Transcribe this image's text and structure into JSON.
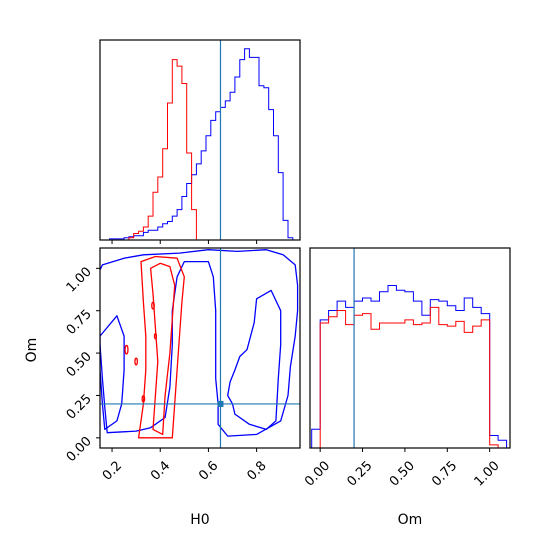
{
  "chart_data": {
    "type": "corner",
    "params": [
      "H0",
      "Om"
    ],
    "truth": {
      "H0": 0.65,
      "Om": 0.2
    },
    "colors": {
      "blue": "#0000ff",
      "red": "#ff0000",
      "truth": "#1f77b4"
    },
    "axes": {
      "H0": {
        "label": "H0",
        "range": [
          0.15,
          0.98
        ],
        "ticks": [
          0.2,
          0.4,
          0.6,
          0.8
        ],
        "tick_labels": [
          "0.2",
          "0.4",
          "0.6",
          "0.8"
        ]
      },
      "Om": {
        "label": "Om",
        "range": [
          -0.06,
          1.12
        ],
        "ticks": [
          0.0,
          0.25,
          0.5,
          0.75,
          1.0
        ],
        "tick_labels": [
          "0.00",
          "0.25",
          "0.50",
          "0.75",
          "1.00"
        ]
      }
    },
    "hist_H0": {
      "bin_edges": [
        0.15,
        0.17,
        0.19,
        0.21,
        0.23,
        0.25,
        0.27,
        0.29,
        0.31,
        0.33,
        0.35,
        0.37,
        0.39,
        0.41,
        0.43,
        0.45,
        0.47,
        0.49,
        0.51,
        0.53,
        0.55,
        0.57,
        0.59,
        0.61,
        0.63,
        0.65,
        0.67,
        0.69,
        0.71,
        0.73,
        0.75,
        0.77,
        0.79,
        0.81,
        0.83,
        0.85,
        0.87,
        0.89,
        0.91,
        0.93,
        0.95,
        0.97
      ],
      "blue_counts": [
        0,
        0,
        0.5,
        0.5,
        0.5,
        1.0,
        1.5,
        2.0,
        2.0,
        3.5,
        4.5,
        4.5,
        6.0,
        7.5,
        8.5,
        11.0,
        14.0,
        20.0,
        26.0,
        30.0,
        35.0,
        41.0,
        48.0,
        55.0,
        59.0,
        61.0,
        64.0,
        68.0,
        75.0,
        83.0,
        88.0,
        84.0,
        84.0,
        71.0,
        70.0,
        60.0,
        48.0,
        31.0,
        9.0,
        1.0,
        0
      ],
      "red_counts": [
        0,
        0,
        0,
        0,
        0,
        0,
        1.0,
        3.0,
        4.0,
        6.0,
        11.0,
        22.0,
        29.0,
        42.0,
        63.0,
        83.0,
        80.0,
        72.0,
        40.0,
        14.0,
        0,
        0,
        0,
        0,
        0,
        0,
        0,
        0,
        0,
        0,
        0,
        0,
        0,
        0,
        0,
        0,
        0,
        0,
        0,
        0,
        0
      ]
    },
    "hist_Om": {
      "bin_edges": [
        -0.05,
        0.0,
        0.05,
        0.1,
        0.15,
        0.2,
        0.25,
        0.3,
        0.35,
        0.4,
        0.45,
        0.5,
        0.55,
        0.6,
        0.65,
        0.7,
        0.75,
        0.8,
        0.85,
        0.9,
        0.95,
        1.0,
        1.05,
        1.1
      ],
      "blue_counts": [
        12,
        82,
        88,
        94,
        90,
        94,
        96,
        94,
        100,
        104,
        101,
        100,
        94,
        85,
        95,
        94,
        91,
        88,
        96,
        90,
        86,
        8,
        5
      ],
      "red_counts": [
        0,
        80,
        84,
        88,
        79,
        85,
        86,
        76,
        80,
        80,
        80,
        82,
        79,
        80,
        90,
        79,
        78,
        81,
        74,
        78,
        82,
        2,
        0
      ]
    },
    "contours": {
      "blue_outer": [
        [
          0.13,
          0.93
        ],
        [
          0.16,
          1.02
        ],
        [
          0.25,
          1.06
        ],
        [
          0.33,
          1.08
        ],
        [
          0.48,
          1.09
        ],
        [
          0.6,
          1.11
        ],
        [
          0.72,
          1.1
        ],
        [
          0.84,
          1.11
        ],
        [
          0.91,
          1.08
        ],
        [
          0.96,
          1.02
        ],
        [
          0.97,
          0.9
        ],
        [
          0.97,
          0.75
        ],
        [
          0.96,
          0.6
        ],
        [
          0.94,
          0.42
        ],
        [
          0.93,
          0.25
        ],
        [
          0.9,
          0.1
        ],
        [
          0.8,
          0.02
        ],
        [
          0.68,
          0.01
        ],
        [
          0.64,
          0.08
        ],
        [
          0.64,
          0.2
        ],
        [
          0.63,
          0.35
        ],
        [
          0.63,
          0.55
        ],
        [
          0.63,
          0.75
        ],
        [
          0.62,
          0.95
        ],
        [
          0.6,
          1.04
        ],
        [
          0.5,
          1.04
        ],
        [
          0.47,
          0.95
        ],
        [
          0.45,
          0.75
        ],
        [
          0.45,
          0.55
        ],
        [
          0.44,
          0.3
        ],
        [
          0.42,
          0.12
        ],
        [
          0.36,
          0.06
        ],
        [
          0.3,
          0.04
        ],
        [
          0.18,
          0.03
        ],
        [
          0.17,
          0.18
        ],
        [
          0.16,
          0.35
        ],
        [
          0.15,
          0.55
        ],
        [
          0.14,
          0.75
        ],
        [
          0.13,
          0.93
        ]
      ],
      "blue_inner_right": [
        [
          0.71,
          0.14
        ],
        [
          0.77,
          0.08
        ],
        [
          0.84,
          0.05
        ],
        [
          0.88,
          0.1
        ],
        [
          0.89,
          0.35
        ],
        [
          0.9,
          0.55
        ],
        [
          0.9,
          0.75
        ],
        [
          0.86,
          0.87
        ],
        [
          0.8,
          0.82
        ],
        [
          0.79,
          0.68
        ],
        [
          0.76,
          0.52
        ],
        [
          0.73,
          0.48
        ],
        [
          0.71,
          0.4
        ],
        [
          0.69,
          0.33
        ],
        [
          0.68,
          0.25
        ],
        [
          0.7,
          0.2
        ],
        [
          0.71,
          0.14
        ]
      ],
      "blue_inner_left": [
        [
          0.15,
          0.6
        ],
        [
          0.15,
          0.4
        ],
        [
          0.16,
          0.2
        ],
        [
          0.17,
          0.05
        ],
        [
          0.22,
          0.1
        ],
        [
          0.24,
          0.2
        ],
        [
          0.25,
          0.4
        ],
        [
          0.25,
          0.6
        ],
        [
          0.22,
          0.72
        ],
        [
          0.15,
          0.6
        ]
      ],
      "red_outer": [
        [
          0.32,
          1.04
        ],
        [
          0.38,
          1.07
        ],
        [
          0.47,
          1.06
        ],
        [
          0.5,
          0.95
        ],
        [
          0.49,
          0.8
        ],
        [
          0.48,
          0.6
        ],
        [
          0.47,
          0.4
        ],
        [
          0.46,
          0.2
        ],
        [
          0.45,
          0.0
        ],
        [
          0.31,
          0.0
        ],
        [
          0.33,
          0.2
        ],
        [
          0.34,
          0.4
        ],
        [
          0.34,
          0.6
        ],
        [
          0.33,
          0.8
        ],
        [
          0.32,
          1.04
        ]
      ],
      "red_inner": [
        [
          0.36,
          1.0
        ],
        [
          0.4,
          1.03
        ],
        [
          0.44,
          1.01
        ],
        [
          0.46,
          0.9
        ],
        [
          0.45,
          0.7
        ],
        [
          0.44,
          0.5
        ],
        [
          0.42,
          0.25
        ],
        [
          0.41,
          0.02
        ],
        [
          0.37,
          0.05
        ],
        [
          0.38,
          0.25
        ],
        [
          0.39,
          0.45
        ],
        [
          0.38,
          0.65
        ],
        [
          0.37,
          0.85
        ],
        [
          0.36,
          1.0
        ]
      ],
      "red_islands": [
        [
          0.26,
          0.52,
          0.006,
          0.025
        ],
        [
          0.3,
          0.45,
          0.005,
          0.02
        ],
        [
          0.37,
          0.78,
          0.005,
          0.02
        ],
        [
          0.33,
          0.23,
          0.005,
          0.018
        ],
        [
          0.38,
          0.6,
          0.004,
          0.015
        ]
      ]
    }
  }
}
